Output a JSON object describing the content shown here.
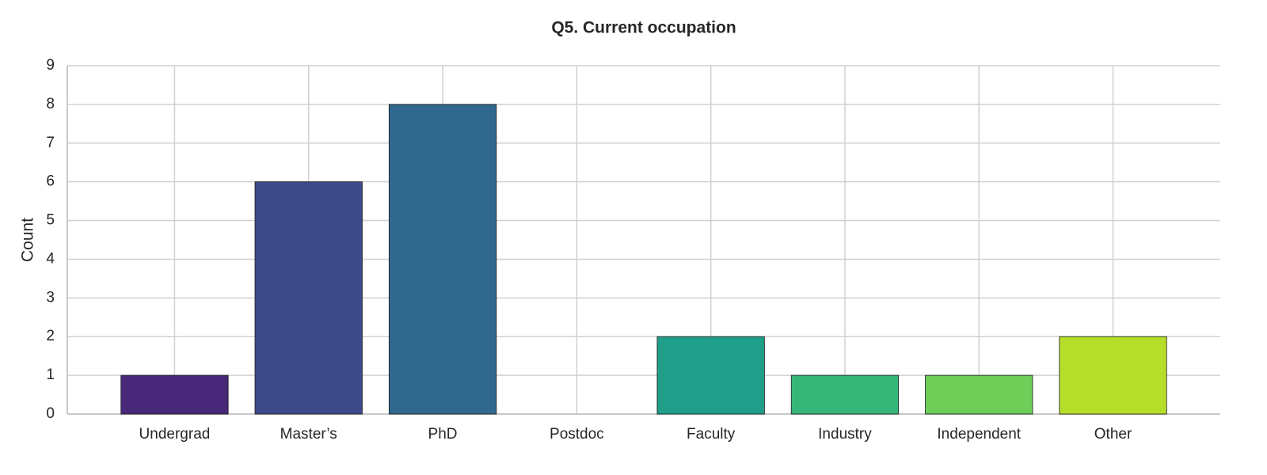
{
  "chart_data": {
    "type": "bar",
    "title": "Q5. Current occupation",
    "ylabel": "Count",
    "categories": [
      "Undergrad",
      "Master’s",
      "PhD",
      "Postdoc",
      "Faculty",
      "Industry",
      "Independent",
      "Other"
    ],
    "values": [
      1,
      6,
      8,
      0,
      2,
      1,
      1,
      2
    ],
    "colors": [
      "#482878",
      "#3e4989",
      "#31688e",
      "#26828e",
      "#1f9e89",
      "#35b779",
      "#6ece58",
      "#b5de2b"
    ],
    "ylim": [
      0,
      9
    ],
    "yticks": [
      0,
      1,
      2,
      3,
      4,
      5,
      6,
      7,
      8,
      9
    ],
    "grid": true
  }
}
